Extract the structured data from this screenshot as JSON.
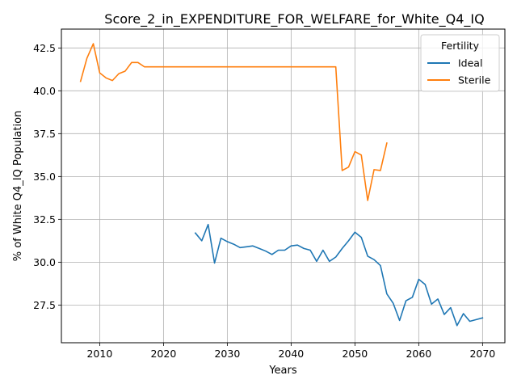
{
  "chart_data": {
    "type": "line",
    "title": "Score_2_in_EXPENDITURE_FOR_WELFARE_for_White_Q4_IQ",
    "xlabel": "Years",
    "ylabel": "% of White Q4_IQ Population",
    "xlim": [
      2004,
      2073.5
    ],
    "ylim": [
      25.3,
      43.6
    ],
    "xticks": [
      2010,
      2020,
      2030,
      2040,
      2050,
      2060,
      2070
    ],
    "yticks": [
      27.5,
      30.0,
      32.5,
      35.0,
      37.5,
      40.0,
      42.5
    ],
    "xtick_labels": [
      "2010",
      "2020",
      "2030",
      "2040",
      "2050",
      "2060",
      "2070"
    ],
    "ytick_labels": [
      "27.5",
      "30.0",
      "32.5",
      "35.0",
      "37.5",
      "40.0",
      "42.5"
    ],
    "grid": true,
    "legend": {
      "title": "Fertility",
      "placement": "top-right"
    },
    "series": [
      {
        "name": "Ideal",
        "color": "#1f77b4",
        "x": [
          2025,
          2026,
          2027,
          2028,
          2029,
          2030,
          2031,
          2032,
          2033,
          2034,
          2035,
          2036,
          2037,
          2038,
          2039,
          2040,
          2041,
          2042,
          2043,
          2044,
          2045,
          2046,
          2047,
          2048,
          2049,
          2050,
          2051,
          2052,
          2053,
          2054,
          2055,
          2056,
          2057,
          2058,
          2059,
          2060,
          2061,
          2062,
          2063,
          2064,
          2065,
          2066,
          2067,
          2068,
          2069,
          2070
        ],
        "y": [
          31.7,
          31.25,
          32.2,
          29.95,
          31.4,
          31.2,
          31.05,
          30.85,
          30.9,
          30.95,
          30.8,
          30.65,
          30.45,
          30.7,
          30.7,
          30.95,
          31.0,
          30.8,
          30.7,
          30.05,
          30.7,
          30.05,
          30.3,
          30.8,
          31.25,
          31.75,
          31.45,
          30.35,
          30.15,
          29.8,
          28.15,
          27.6,
          26.6,
          27.75,
          27.95,
          29.0,
          28.7,
          27.55,
          27.85,
          26.95,
          27.35,
          26.3,
          27.0,
          26.55,
          26.65,
          26.75
        ]
      },
      {
        "name": "Sterile",
        "color": "#ff7f0e",
        "x": [
          2007,
          2008,
          2009,
          2010,
          2011,
          2012,
          2013,
          2014,
          2015,
          2016,
          2017,
          2018,
          2019,
          2020,
          2021,
          2022,
          2023,
          2024,
          2025,
          2026,
          2027,
          2028,
          2029,
          2030,
          2031,
          2032,
          2033,
          2034,
          2035,
          2036,
          2037,
          2038,
          2039,
          2040,
          2041,
          2042,
          2043,
          2044,
          2045,
          2046,
          2047,
          2048,
          2049,
          2050,
          2051,
          2052,
          2053,
          2054,
          2055
        ],
        "y": [
          40.55,
          41.9,
          42.75,
          41.05,
          40.75,
          40.6,
          41.0,
          41.15,
          41.65,
          41.65,
          41.4,
          41.4,
          41.4,
          41.4,
          41.4,
          41.4,
          41.4,
          41.4,
          41.4,
          41.4,
          41.4,
          41.4,
          41.4,
          41.4,
          41.4,
          41.4,
          41.4,
          41.4,
          41.4,
          41.4,
          41.4,
          41.4,
          41.4,
          41.4,
          41.4,
          41.4,
          41.4,
          41.4,
          41.4,
          41.4,
          41.4,
          35.35,
          35.55,
          36.45,
          36.25,
          33.6,
          35.4,
          35.35,
          36.95
        ]
      }
    ]
  }
}
